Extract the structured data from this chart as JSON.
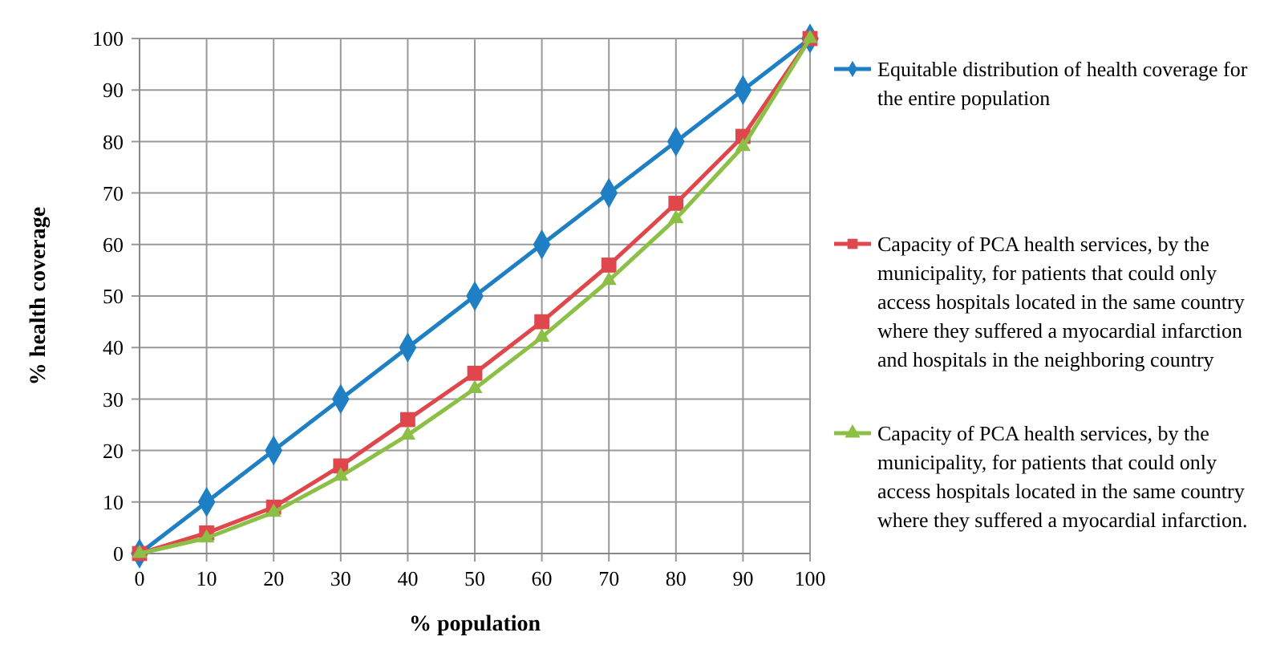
{
  "chart_data": {
    "type": "line",
    "xlabel": "% population",
    "ylabel": "% health coverage",
    "x": [
      0,
      10,
      20,
      30,
      40,
      50,
      60,
      70,
      80,
      90,
      100
    ],
    "xlim": [
      0,
      100
    ],
    "xticks": [
      0,
      10,
      20,
      30,
      40,
      50,
      60,
      70,
      80,
      90,
      100
    ],
    "ylim": [
      0,
      100
    ],
    "yticks": [
      0,
      10,
      20,
      30,
      40,
      50,
      60,
      70,
      80,
      90,
      100
    ],
    "grid": true,
    "legend": "right",
    "series": [
      {
        "name": "Equitable distribution of health coverage for the entire population",
        "color": "#1f7fc4",
        "marker": "diamond",
        "values": [
          0,
          10,
          20,
          30,
          40,
          50,
          60,
          70,
          80,
          90,
          100
        ]
      },
      {
        "name": "Capacity of PCA health services, by the municipality, for patients that could only access hospitals located in the same country where they suffered a myocardial infarction and hospitals in the neighboring country",
        "color": "#e0474c",
        "marker": "square",
        "values": [
          0,
          4,
          9,
          17,
          26,
          35,
          45,
          56,
          68,
          81,
          100
        ]
      },
      {
        "name": "Capacity of PCA health services, by the municipality, for patients that could only access hospitals located in the same country where they suffered a myocardial infarction.",
        "color": "#8cbf45",
        "marker": "triangle",
        "values": [
          0,
          3,
          8,
          15,
          23,
          32,
          42,
          53,
          65,
          79,
          100
        ]
      }
    ]
  }
}
